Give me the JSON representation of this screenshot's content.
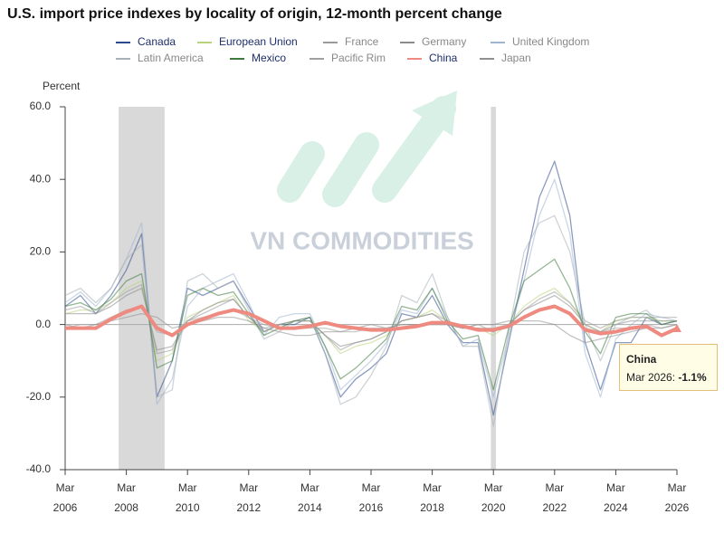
{
  "chart_data": {
    "type": "line",
    "title": "U.S. import price indexes by locality of origin, 12-month percent change",
    "y_label": "Percent",
    "watermark": "VN COMMODITIES",
    "highlight": "China",
    "grid": false,
    "x": [
      "2006-03",
      "2006-09",
      "2007-03",
      "2007-09",
      "2008-03",
      "2008-09",
      "2009-03",
      "2009-09",
      "2010-03",
      "2010-09",
      "2011-03",
      "2011-09",
      "2012-03",
      "2012-09",
      "2013-03",
      "2013-09",
      "2014-03",
      "2014-09",
      "2015-03",
      "2015-09",
      "2016-03",
      "2016-09",
      "2017-03",
      "2017-09",
      "2018-03",
      "2018-09",
      "2019-03",
      "2019-09",
      "2020-03",
      "2020-09",
      "2021-03",
      "2021-09",
      "2022-03",
      "2022-09",
      "2023-03",
      "2023-09",
      "2024-03",
      "2024-09",
      "2025-03",
      "2025-09",
      "2026-03"
    ],
    "xlim": [
      "2006-03",
      "2026-03"
    ],
    "xticks": [
      {
        "value": "2006-03",
        "label": "Mar 2006"
      },
      {
        "value": "2008-03",
        "label": "Mar 2008"
      },
      {
        "value": "2010-03",
        "label": "Mar 2010"
      },
      {
        "value": "2012-03",
        "label": "Mar 2012"
      },
      {
        "value": "2014-03",
        "label": "Mar 2014"
      },
      {
        "value": "2016-03",
        "label": "Mar 2016"
      },
      {
        "value": "2018-03",
        "label": "Mar 2018"
      },
      {
        "value": "2020-03",
        "label": "Mar 2020"
      },
      {
        "value": "2022-03",
        "label": "Mar 2022"
      },
      {
        "value": "2024-03",
        "label": "Mar 2024"
      },
      {
        "value": "2026-03",
        "label": "Mar 2026"
      }
    ],
    "ylim": [
      -40,
      60
    ],
    "yticks": [
      {
        "value": -40,
        "label": "-40.0"
      },
      {
        "value": -20,
        "label": "-20.0"
      },
      {
        "value": 0,
        "label": "0.0"
      },
      {
        "value": 20,
        "label": "20.0"
      },
      {
        "value": 40,
        "label": "40.0"
      },
      {
        "value": 60,
        "label": "60.0"
      }
    ],
    "shaded_ranges": [
      [
        "2007-12",
        "2009-06"
      ],
      [
        "2020-02",
        "2020-04"
      ]
    ],
    "series": [
      {
        "name": "Canada",
        "color": "#2b4a8c",
        "values": [
          5,
          8,
          3,
          8,
          15,
          25,
          -20,
          -10,
          10,
          8,
          10,
          12,
          5,
          -2,
          0,
          0,
          2,
          -8,
          -20,
          -15,
          -12,
          -8,
          3,
          2,
          8,
          0,
          -5,
          -5,
          -25,
          -5,
          15,
          35,
          45,
          30,
          -5,
          -18,
          -5,
          -5,
          2,
          0,
          1
        ]
      },
      {
        "name": "European Union",
        "color": "#b9d37a",
        "values": [
          3,
          4,
          4,
          6,
          10,
          12,
          -10,
          -8,
          2,
          4,
          6,
          8,
          1,
          -2,
          0,
          1,
          1,
          -3,
          -8,
          -6,
          -5,
          -3,
          1,
          2,
          4,
          1,
          -1,
          -1,
          -3,
          0,
          5,
          8,
          10,
          6,
          0,
          -2,
          1,
          2,
          2,
          1,
          1
        ]
      },
      {
        "name": "France",
        "color": "#9a9a9a",
        "values": [
          4,
          5,
          3,
          6,
          9,
          11,
          -8,
          -7,
          1,
          3,
          5,
          7,
          2,
          -1,
          0,
          1,
          1,
          -3,
          -7,
          -5,
          -4,
          -2,
          1,
          2,
          3,
          1,
          -1,
          0,
          -2,
          0,
          4,
          7,
          9,
          6,
          1,
          -1,
          1,
          2,
          2,
          2,
          2
        ]
      },
      {
        "name": "Germany",
        "color": "#8c8c8c",
        "values": [
          3,
          3,
          3,
          5,
          8,
          10,
          -7,
          -6,
          1,
          4,
          6,
          7,
          2,
          -2,
          0,
          1,
          1,
          -3,
          -6,
          -5,
          -4,
          -2,
          1,
          2,
          3,
          0,
          -1,
          -1,
          -2,
          0,
          4,
          6,
          8,
          5,
          0,
          -2,
          0,
          1,
          1,
          1,
          1
        ]
      },
      {
        "name": "United Kingdom",
        "color": "#9fb4cf",
        "values": [
          6,
          9,
          5,
          10,
          18,
          28,
          -22,
          -15,
          5,
          10,
          12,
          14,
          6,
          -3,
          2,
          3,
          3,
          -6,
          -18,
          -14,
          -10,
          -5,
          4,
          3,
          10,
          2,
          -6,
          -4,
          -20,
          -3,
          12,
          30,
          40,
          25,
          -8,
          -20,
          -4,
          0,
          3,
          2,
          1
        ]
      },
      {
        "name": "Latin America",
        "color": "#a8b0b8",
        "values": [
          8,
          10,
          6,
          10,
          18,
          22,
          -20,
          -18,
          12,
          14,
          10,
          12,
          4,
          -4,
          -2,
          1,
          2,
          -8,
          -22,
          -20,
          -14,
          -6,
          8,
          6,
          14,
          2,
          -6,
          -6,
          -28,
          -2,
          20,
          28,
          30,
          20,
          0,
          -10,
          0,
          2,
          4,
          0,
          1
        ]
      },
      {
        "name": "Mexico",
        "color": "#3d7a3d",
        "values": [
          5,
          6,
          4,
          7,
          12,
          14,
          -12,
          -10,
          8,
          10,
          8,
          9,
          3,
          -3,
          -1,
          1,
          2,
          -6,
          -15,
          -12,
          -8,
          -4,
          5,
          4,
          10,
          1,
          -4,
          -3,
          -18,
          -1,
          12,
          15,
          18,
          10,
          -2,
          -8,
          2,
          3,
          3,
          0,
          1
        ]
      },
      {
        "name": "Pacific Rim",
        "color": "#a0a0a0",
        "values": [
          -1,
          0,
          0,
          2,
          4,
          5,
          -2,
          -3,
          1,
          2,
          3,
          4,
          2,
          0,
          -1,
          -1,
          -1,
          -1,
          -2,
          -2,
          -1,
          -1,
          0,
          0,
          0,
          0,
          -1,
          -1,
          -1,
          0,
          2,
          4,
          5,
          3,
          -1,
          -2,
          -1,
          -1,
          0,
          -1,
          0
        ]
      },
      {
        "name": "China",
        "color": "#ee8a80",
        "values": [
          -1,
          -1,
          -1,
          1.5,
          3.5,
          5,
          -1,
          -3,
          0,
          1.5,
          3,
          4,
          3,
          1,
          -1,
          -1,
          -0.5,
          0.5,
          -0.5,
          -1,
          -1.5,
          -1.5,
          -1,
          -0.5,
          0.5,
          0.5,
          -0.5,
          -1.5,
          -1.5,
          -0.5,
          2,
          4,
          5,
          3,
          -1.5,
          -2.5,
          -2,
          -1,
          -0.5,
          -3,
          -1.1
        ]
      },
      {
        "name": "Japan",
        "color": "#909090",
        "values": [
          0,
          -1,
          0,
          1,
          2,
          3,
          2,
          -1,
          0,
          1,
          2,
          2,
          1,
          -1,
          -2,
          -3,
          -3,
          -2,
          -2,
          -1,
          0,
          -1,
          0,
          0,
          0,
          0,
          -1,
          0,
          0,
          1,
          1,
          1,
          0,
          -3,
          -5,
          -4,
          -3,
          -2,
          -1,
          -1,
          0
        ]
      }
    ],
    "tooltip": {
      "series": "China",
      "date": "Mar 2026:",
      "value": "-1.1%"
    }
  }
}
